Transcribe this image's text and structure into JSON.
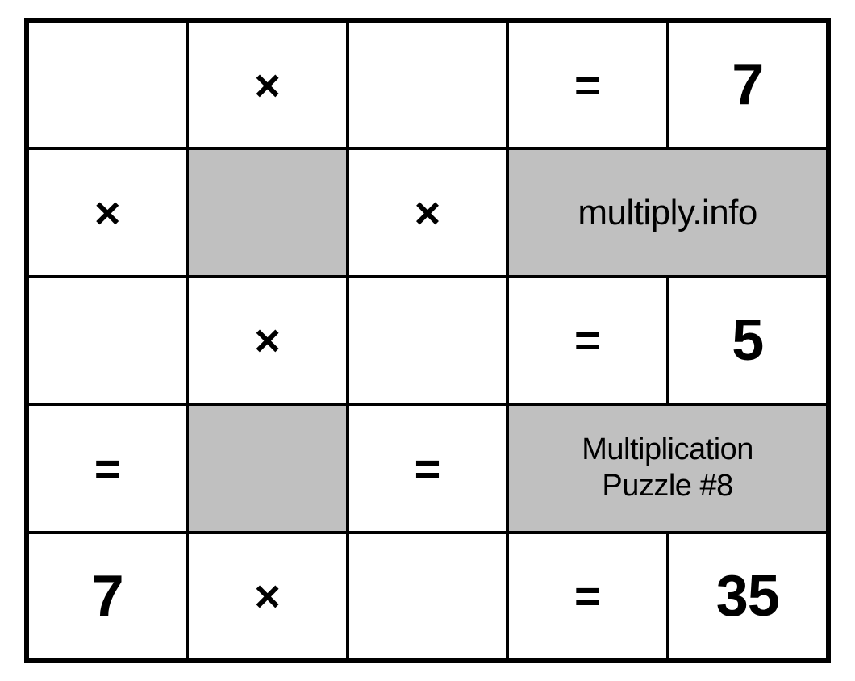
{
  "puzzle": {
    "symbols": {
      "multiply": "×",
      "equals": "="
    },
    "brand": "multiply.info",
    "label_line1": "Multiplication",
    "label_line2": "Puzzle #8",
    "colors": {
      "border": "#000000",
      "shaded_bg": "#c0c0c0",
      "cell_bg": "#ffffff",
      "text": "#000000"
    },
    "grid": [
      [
        {
          "type": "blank"
        },
        {
          "type": "symbol",
          "content": "multiply"
        },
        {
          "type": "blank"
        },
        {
          "type": "symbol",
          "content": "equals"
        },
        {
          "type": "value",
          "content": "7"
        }
      ],
      [
        {
          "type": "symbol",
          "content": "multiply"
        },
        {
          "type": "shaded"
        },
        {
          "type": "symbol",
          "content": "multiply"
        },
        {
          "type": "brand_span",
          "shaded": true
        }
      ],
      [
        {
          "type": "blank"
        },
        {
          "type": "symbol",
          "content": "multiply"
        },
        {
          "type": "blank"
        },
        {
          "type": "symbol",
          "content": "equals"
        },
        {
          "type": "value",
          "content": "5"
        }
      ],
      [
        {
          "type": "symbol",
          "content": "equals"
        },
        {
          "type": "shaded"
        },
        {
          "type": "symbol",
          "content": "equals"
        },
        {
          "type": "label_span",
          "shaded": true
        }
      ],
      [
        {
          "type": "value",
          "content": "7"
        },
        {
          "type": "symbol",
          "content": "multiply"
        },
        {
          "type": "blank"
        },
        {
          "type": "symbol",
          "content": "equals"
        },
        {
          "type": "value",
          "content": "35"
        }
      ]
    ],
    "values": {
      "r0c4": "7",
      "r2c4": "5",
      "r4c0": "7",
      "r4c4": "35"
    },
    "font_sizes": {
      "symbol": 56,
      "value": 72,
      "brand": 44,
      "label": 38
    }
  }
}
